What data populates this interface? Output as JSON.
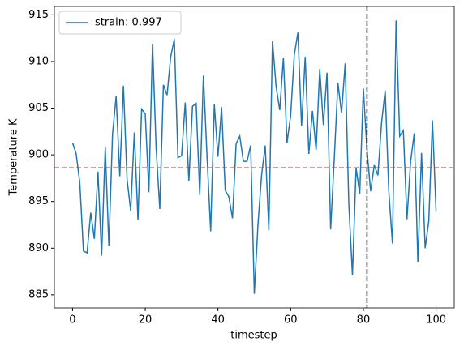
{
  "chart_data": {
    "type": "line",
    "x_label": "timestep",
    "y_label": "Temperature K",
    "x": [
      0,
      1,
      2,
      3,
      4,
      5,
      6,
      7,
      8,
      9,
      10,
      11,
      12,
      13,
      14,
      15,
      16,
      17,
      18,
      19,
      20,
      21,
      22,
      23,
      24,
      25,
      26,
      27,
      28,
      29,
      30,
      31,
      32,
      33,
      34,
      35,
      36,
      37,
      38,
      39,
      40,
      41,
      42,
      43,
      44,
      45,
      46,
      47,
      48,
      49,
      50,
      51,
      52,
      53,
      54,
      55,
      56,
      57,
      58,
      59,
      60,
      61,
      62,
      63,
      64,
      65,
      66,
      67,
      68,
      69,
      70,
      71,
      72,
      73,
      74,
      75,
      76,
      77,
      78,
      79,
      80,
      81,
      82,
      83,
      84,
      85,
      86,
      87,
      88,
      89,
      90,
      91,
      92,
      93,
      94,
      95,
      96,
      97,
      98,
      99,
      100
    ],
    "series": [
      {
        "name": "strain: 0.997",
        "color": "#1f77b4",
        "values": [
          901.3,
          900.1,
          897,
          889.7,
          889.5,
          893.8,
          891,
          898.2,
          889.2,
          900.8,
          890.2,
          902.2,
          906.3,
          897.7,
          907.4,
          897.4,
          894,
          902.4,
          893,
          904.9,
          904.4,
          896,
          911.9,
          900.7,
          894.2,
          907.5,
          906.4,
          910.5,
          912.4,
          899.7,
          899.9,
          905.6,
          897.2,
          905.2,
          905.5,
          895.7,
          908.5,
          899.8,
          891.8,
          905.4,
          899.8,
          905.1,
          896.2,
          895.5,
          893.2,
          901.2,
          902,
          899.3,
          899.3,
          901,
          885.1,
          892.5,
          897.8,
          901,
          891.9,
          912.2,
          907.3,
          904.8,
          910.4,
          901.3,
          904.2,
          910.7,
          913.1,
          903.1,
          910.5,
          900.1,
          904.7,
          900.5,
          909.2,
          903.2,
          908.8,
          892,
          899.6,
          907.7,
          904.5,
          909.8,
          894.7,
          887.1,
          898.6,
          895.8,
          907.1,
          900.5,
          896.1,
          898.9,
          897.8,
          903.4,
          906.9,
          896.1,
          890.5,
          914.4,
          902,
          902.6,
          893.1,
          899.3,
          902.3,
          888.5,
          900.2,
          890,
          892.9,
          903.7,
          893.9
        ]
      }
    ],
    "hline": 898.6,
    "hline_color": "#d62728",
    "vline": 81,
    "vline_color": "#000000",
    "xlim": [
      -5,
      105
    ],
    "xticks": [
      0,
      20,
      40,
      60,
      80,
      100
    ],
    "ylim": [
      883.6,
      915.9
    ],
    "yticks": [
      885,
      890,
      895,
      900,
      905,
      910,
      915
    ],
    "legend": "upper left"
  }
}
